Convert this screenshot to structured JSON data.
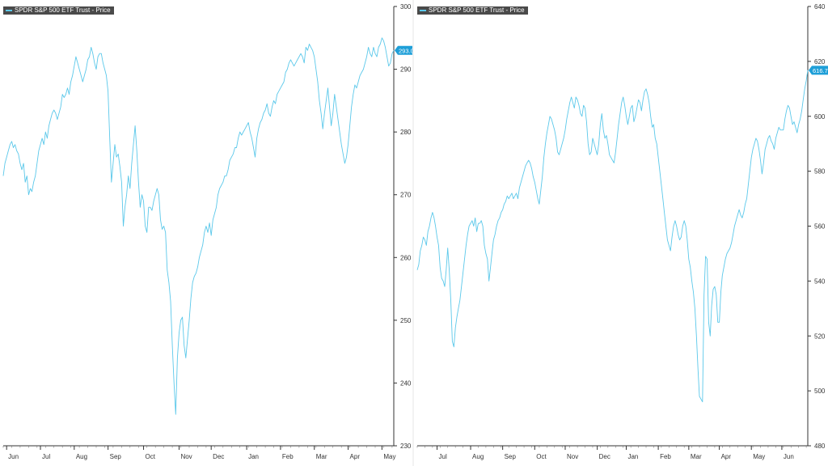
{
  "colors": {
    "line": "#5bc8ea",
    "axis": "#333333",
    "text": "#333333",
    "badge": "#1e9fd8",
    "badge_text": "#ffffff",
    "label_bg": "#4a4a4a"
  },
  "chart_data": [
    {
      "type": "line",
      "series_label": "SPDR S&P 500 ETF Trust - Price",
      "last_value_badge": "293.00",
      "ylim": [
        230,
        300
      ],
      "y_ticks": [
        "230",
        "240",
        "250",
        "260",
        "270",
        "280",
        "290",
        "300"
      ],
      "x_ticks": [
        "Jun",
        "Jul",
        "Aug",
        "Sep",
        "Oct",
        "Nov",
        "Dec",
        "Jan",
        "Feb",
        "Mar",
        "Apr",
        "May",
        "Jun"
      ],
      "x_tick_index": [
        2,
        22,
        42,
        62,
        83,
        104,
        123,
        144,
        164,
        184,
        204,
        224,
        245
      ],
      "series": [
        {
          "values": [
            273,
            275,
            276,
            277,
            278,
            278.5,
            277.5,
            278,
            277,
            276.5,
            275,
            274,
            275,
            272,
            273,
            270,
            271,
            270.5,
            272,
            273,
            275,
            277,
            278,
            279,
            278,
            280,
            279,
            281,
            282,
            283,
            283.5,
            283,
            282,
            283,
            284,
            286,
            285.5,
            286,
            287,
            286,
            288,
            289,
            290.5,
            292,
            291,
            290,
            289,
            288,
            289,
            290,
            291.5,
            292,
            293.5,
            292.5,
            291,
            290,
            292,
            292.5,
            292.5,
            291,
            290,
            289,
            286.5,
            279,
            272,
            275,
            278,
            276,
            276.5,
            274.5,
            272,
            265,
            268,
            270,
            273,
            271,
            275,
            278,
            281,
            277,
            272,
            268,
            270,
            269,
            265,
            264,
            268,
            268,
            267.5,
            269,
            270,
            271,
            270,
            266,
            264.5,
            265,
            264,
            258,
            256,
            253,
            246,
            240,
            235,
            244,
            248,
            250,
            250.5,
            246,
            244,
            247,
            250,
            253.5,
            256,
            257,
            257.5,
            258.5,
            260,
            261,
            262,
            264,
            265,
            264,
            265.5,
            263.5,
            266,
            267,
            268,
            270,
            271,
            271.5,
            272,
            273,
            273,
            274,
            275.5,
            276,
            276.5,
            277.5,
            277.5,
            279,
            280,
            279.5,
            280,
            280.5,
            281,
            281.5,
            280,
            279,
            277.5,
            276,
            279,
            280.5,
            281.5,
            282,
            283,
            283.5,
            284.5,
            283,
            282.5,
            284,
            285,
            284.5,
            286,
            286.5,
            287,
            287.5,
            288,
            289.5,
            290,
            291,
            291.5,
            291,
            290.5,
            291,
            291.5,
            292,
            292.5,
            292,
            291,
            293.5,
            293,
            294,
            293.5,
            293,
            292,
            290,
            288,
            285,
            283,
            280.5,
            283,
            285,
            287,
            284,
            281,
            283,
            286,
            284,
            282,
            280,
            278,
            276.5,
            275,
            276,
            278,
            281,
            284,
            286,
            287.5,
            287,
            288,
            289,
            289.5,
            290,
            291,
            292,
            293.5,
            292.5,
            292,
            293.5,
            292.5,
            292,
            293.5,
            294,
            295,
            294.5,
            293.5,
            292,
            290.5,
            291,
            292.5,
            293
          ]
        }
      ]
    },
    {
      "type": "line",
      "series_label": "SPDR S&P 500 ETF Trust - Price",
      "last_value_badge": "616.77",
      "ylim": [
        480,
        640
      ],
      "y_ticks": [
        "480",
        "500",
        "520",
        "540",
        "560",
        "580",
        "600",
        "620",
        "640"
      ],
      "x_ticks": [
        "Jul",
        "Aug",
        "Sep",
        "Oct",
        "Nov",
        "Dec",
        "Jan",
        "Feb",
        "Mar",
        "Apr",
        "May",
        "Jun"
      ],
      "x_tick_index": [
        13,
        35,
        56,
        77,
        97,
        118,
        137,
        158,
        178,
        198,
        219,
        239
      ],
      "series": [
        {
          "values": [
            544,
            546,
            551,
            553,
            556,
            555,
            553,
            558,
            560,
            563,
            565,
            563,
            560,
            556,
            553,
            545,
            541,
            540,
            538,
            544,
            552,
            544,
            533,
            518,
            516,
            523,
            527,
            530,
            533,
            538,
            543,
            548,
            553,
            557,
            560,
            561,
            562,
            560,
            563,
            558,
            561,
            561,
            562,
            560,
            553,
            550,
            548,
            540,
            545,
            550,
            555,
            557,
            560,
            562,
            563,
            565,
            566,
            568,
            569,
            571,
            570,
            571,
            572,
            570,
            571,
            572,
            570,
            574,
            576,
            578,
            580,
            582,
            583,
            584,
            583,
            581,
            578,
            576,
            573,
            570,
            568,
            573,
            578,
            585,
            590,
            594,
            597,
            600,
            599,
            597,
            595,
            592,
            587,
            586,
            588,
            590,
            592,
            595,
            599,
            602,
            605,
            607,
            605,
            603,
            607,
            606,
            604,
            601,
            600,
            604,
            603,
            598,
            590,
            586,
            587,
            592,
            590,
            588,
            586,
            590,
            597,
            601,
            595,
            592,
            593,
            590,
            586,
            585,
            584,
            583,
            587,
            592,
            597,
            601,
            605,
            607,
            604,
            600,
            597,
            600,
            603,
            604,
            598,
            600,
            603,
            606,
            605,
            602,
            606,
            609,
            610,
            608,
            605,
            600,
            596,
            597,
            592,
            590,
            585,
            580,
            575,
            570,
            565,
            560,
            555,
            553,
            551,
            556,
            560,
            562,
            560,
            557,
            555,
            556,
            560,
            562,
            560,
            555,
            548,
            545,
            540,
            536,
            530,
            520,
            508,
            498,
            497,
            496,
            535,
            549,
            548,
            525,
            520,
            531,
            537,
            538,
            535,
            525,
            525,
            536,
            542,
            545,
            548,
            550,
            551,
            552,
            554,
            557,
            560,
            562,
            564,
            566,
            564,
            563,
            565,
            568,
            570,
            575,
            580,
            585,
            588,
            590,
            592,
            591,
            588,
            584,
            579,
            583,
            588,
            590,
            592,
            593,
            591,
            590,
            588,
            592,
            594,
            596,
            595,
            595,
            595,
            599,
            602,
            604,
            603,
            600,
            597,
            598,
            596,
            594,
            597,
            599,
            602,
            606,
            610,
            613,
            616.77
          ]
        }
      ]
    }
  ]
}
